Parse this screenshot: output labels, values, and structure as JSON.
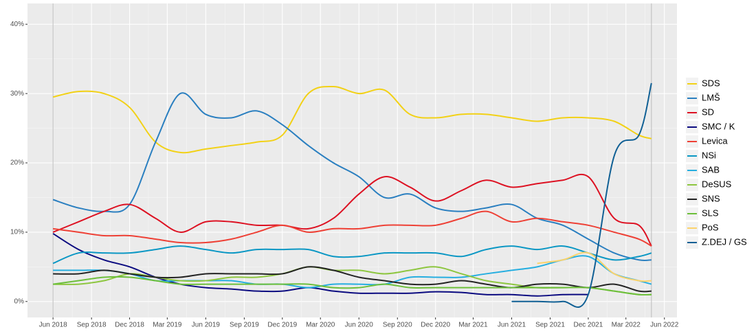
{
  "chart_data": {
    "type": "line",
    "x": [
      "Jun 2018",
      "Aug 2018",
      "Oct 2018",
      "Dec 2018",
      "Feb 2019",
      "Apr 2019",
      "Jun 2019",
      "Aug 2019",
      "Oct 2019",
      "Dec 2019",
      "Feb 2020",
      "Apr 2020",
      "Jun 2020",
      "Aug 2020",
      "Oct 2020",
      "Dec 2020",
      "Feb 2021",
      "Apr 2021",
      "Jun 2021",
      "Aug 2021",
      "Oct 2021",
      "Dec 2021",
      "Feb 2022",
      "Apr 2022",
      "May 2022"
    ],
    "xlim": [
      "Apr 2018",
      "Jul 2022"
    ],
    "xticks": [
      "Jun 2018",
      "Sep 2018",
      "Dec 2018",
      "Mar 2019",
      "Jun 2019",
      "Sep 2019",
      "Dec 2019",
      "Mar 2020",
      "Jun 2020",
      "Sep 2020",
      "Dec 2020",
      "Mar 2021",
      "Jun 2021",
      "Sep 2021",
      "Dec 2021",
      "Mar 2022",
      "Jun 2022"
    ],
    "ylim": [
      -2.3,
      43
    ],
    "yticks": [
      {
        "value": 0,
        "label": "0%"
      },
      {
        "value": 10,
        "label": "10%"
      },
      {
        "value": 20,
        "label": "20%"
      },
      {
        "value": 30,
        "label": "30%"
      },
      {
        "value": 40,
        "label": "40%"
      }
    ],
    "grid": true,
    "legend": "right",
    "series": [
      {
        "name": "SDS",
        "color": "#f2d116",
        "values": [
          29.5,
          30.3,
          30,
          28,
          23,
          21.5,
          22,
          22.5,
          23,
          24,
          30,
          31,
          30,
          30.5,
          27,
          26.5,
          27,
          27,
          26.5,
          26,
          26.5,
          26.5,
          26,
          24,
          23.5
        ]
      },
      {
        "name": "LMŠ",
        "color": "#2a7fc0",
        "values": [
          14.7,
          13.5,
          13,
          14,
          23,
          30,
          27,
          26.5,
          27.5,
          25.5,
          22.5,
          20,
          18,
          15,
          15.5,
          13.5,
          13,
          13.5,
          14,
          12,
          11,
          9,
          7,
          6,
          6
        ]
      },
      {
        "name": "SD",
        "color": "#dd1122",
        "values": [
          10,
          11.5,
          13,
          14,
          12,
          10,
          11.5,
          11.5,
          11,
          11,
          10.5,
          12,
          15.5,
          18,
          16.5,
          14.5,
          16,
          17.5,
          16.5,
          17,
          17.5,
          18,
          12,
          11,
          8
        ]
      },
      {
        "name": "SMC / K",
        "color": "#0b0b80",
        "values": [
          9.8,
          7.5,
          6,
          5,
          3.5,
          2.5,
          2,
          1.8,
          1.5,
          1.5,
          2,
          1.5,
          1.2,
          1.2,
          1.2,
          1.4,
          1.3,
          1,
          1,
          0.8,
          1,
          1,
          null,
          null,
          null
        ]
      },
      {
        "name": "Levica",
        "color": "#ee4035",
        "values": [
          10.5,
          10,
          9.5,
          9.5,
          9,
          8.5,
          8.5,
          9,
          10,
          11,
          10,
          10.5,
          10.5,
          11,
          11,
          11,
          12,
          13,
          11.5,
          12,
          11.5,
          11,
          10,
          9,
          8
        ]
      },
      {
        "name": "NSi",
        "color": "#0a97c4",
        "values": [
          5.5,
          7,
          7,
          7,
          7.5,
          8,
          7.5,
          7,
          7.5,
          7.5,
          7.5,
          6.5,
          6.5,
          7,
          7,
          7,
          6.5,
          7.5,
          8,
          7.5,
          8,
          7,
          6,
          6.5,
          7
        ]
      },
      {
        "name": "SAB",
        "color": "#26aee0",
        "values": [
          4.5,
          4.5,
          4.5,
          4,
          3,
          3,
          3,
          3,
          2.5,
          2.5,
          2,
          2.5,
          2.5,
          2.5,
          3.5,
          3.5,
          3.5,
          4,
          4.5,
          5,
          6,
          6.5,
          4,
          3,
          2.5
        ]
      },
      {
        "name": "DeSUS",
        "color": "#8dc63f",
        "values": [
          2.5,
          2.5,
          3,
          4,
          3.5,
          3,
          3,
          3.5,
          3.5,
          4,
          5,
          4.5,
          4.5,
          4,
          4.5,
          5,
          4,
          3,
          2.5,
          2,
          2,
          2,
          1.5,
          1,
          1
        ]
      },
      {
        "name": "SNS",
        "color": "#222222",
        "values": [
          4,
          4,
          4.5,
          4,
          3.5,
          3.5,
          4,
          4,
          4,
          4,
          5,
          4.5,
          3.5,
          3,
          2.5,
          2.5,
          3,
          2.5,
          2,
          2.5,
          2.5,
          2,
          2.5,
          1.5,
          1.5
        ]
      },
      {
        "name": "SLS",
        "color": "#6cbf3a",
        "values": [
          2.5,
          3,
          3.5,
          3.5,
          3,
          2.5,
          2.5,
          2.5,
          2.5,
          2.5,
          2.5,
          2,
          2,
          2.5,
          2,
          2,
          2,
          2,
          2,
          2,
          2,
          2,
          1.5,
          1,
          1
        ]
      },
      {
        "name": "PoS",
        "color": "#fcd36b",
        "values": [
          null,
          null,
          null,
          null,
          null,
          null,
          null,
          null,
          null,
          null,
          null,
          null,
          null,
          null,
          null,
          null,
          null,
          null,
          null,
          5.5,
          6,
          7,
          4,
          3,
          3
        ]
      },
      {
        "name": "Z.DEJ / GS",
        "color": "#0f5f94",
        "values": [
          null,
          null,
          null,
          null,
          null,
          null,
          null,
          null,
          null,
          null,
          null,
          null,
          null,
          null,
          null,
          null,
          null,
          null,
          0,
          0,
          0,
          1,
          21,
          24,
          31.5
        ]
      }
    ]
  }
}
